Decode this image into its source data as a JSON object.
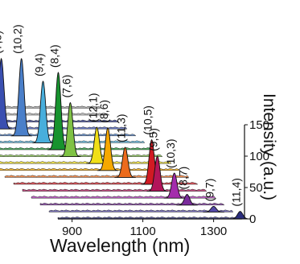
{
  "chart_data": {
    "type": "area",
    "xlabel": "Wavelength (nm)",
    "ylabel": "Intensity (a.u.)",
    "x_ticks": [
      900,
      1100,
      1300
    ],
    "y_ticks": [
      0,
      50,
      100,
      150
    ],
    "xlim": [
      860,
      1380
    ],
    "ylim": [
      0,
      150
    ],
    "grid": false,
    "series": [
      {
        "name": "(9,1)",
        "peak_nm": 898,
        "peak_intensity": 42,
        "color": "#9a9a9a"
      },
      {
        "name": "(8,3)",
        "peak_nm": 950,
        "peak_intensity": 128,
        "color": "#b9b9b9"
      },
      {
        "name": "(6,5)",
        "peak_nm": 978,
        "peak_intensity": 92,
        "color": "#27318a"
      },
      {
        "name": "(7,5)",
        "peak_nm": 1025,
        "peak_intensity": 112,
        "color": "#3a4fb0"
      },
      {
        "name": "(10,2)",
        "peak_nm": 1057,
        "peak_intensity": 123,
        "color": "#4a7fc9"
      },
      {
        "name": "(9,4)",
        "peak_nm": 1093,
        "peak_intensity": 98,
        "color": "#48aedc"
      },
      {
        "name": "(8,4)",
        "peak_nm": 1111,
        "peak_intensity": 123,
        "color": "#17932e"
      },
      {
        "name": "(7,6)",
        "peak_nm": 1120,
        "peak_intensity": 86,
        "color": "#7fc245"
      },
      {
        "name": "(12,1)",
        "peak_nm": 1170,
        "peak_intensity": 58,
        "color": "#f0df17"
      },
      {
        "name": "(8,6)",
        "peak_nm": 1176,
        "peak_intensity": 68,
        "color": "#f6a800"
      },
      {
        "name": "(11,3)",
        "peak_nm": 1200,
        "peak_intensity": 48,
        "color": "#ec6b1c"
      },
      {
        "name": "(10,5)",
        "peak_nm": 1250,
        "peak_intensity": 71,
        "color": "#d11a23"
      },
      {
        "name": "(9,5)",
        "peak_nm": 1241,
        "peak_intensity": 56,
        "color": "#b3155a"
      },
      {
        "name": "(10,3)",
        "peak_nm": 1264,
        "peak_intensity": 40,
        "color": "#a42cac"
      },
      {
        "name": "(8,7)",
        "peak_nm": 1275,
        "peak_intensity": 17,
        "color": "#7a2c9c"
      },
      {
        "name": "(9,7)",
        "peak_nm": 1325,
        "peak_intensity": 9,
        "color": "#5348a6"
      },
      {
        "name": "(11,4)",
        "peak_nm": 1375,
        "peak_intensity": 12,
        "color": "#2a2d7d"
      }
    ]
  }
}
